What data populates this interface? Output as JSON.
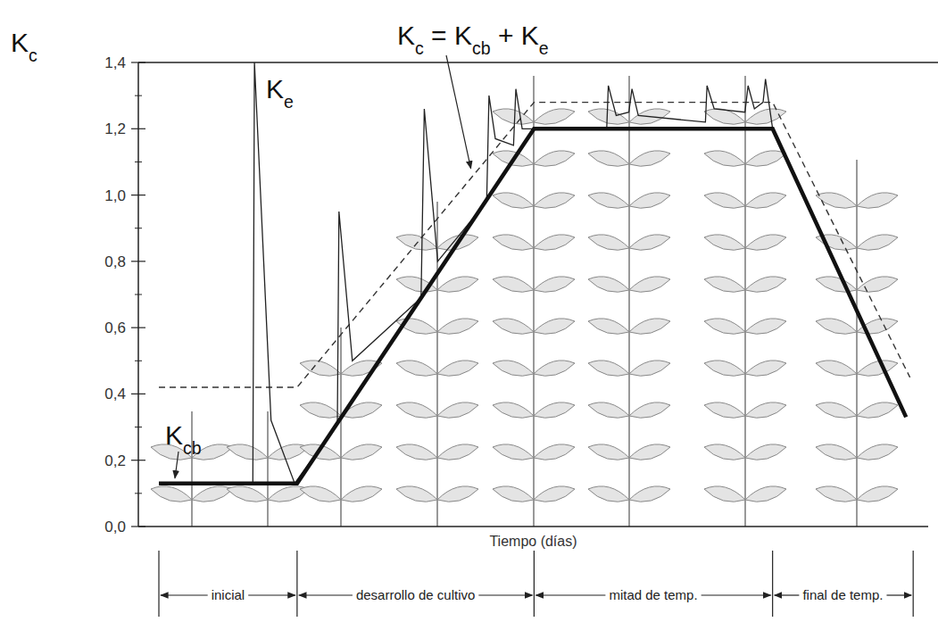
{
  "chart_data": {
    "type": "line",
    "y_label": "Kc",
    "x_label": "Tiempo (días)",
    "xlim": [
      0,
      100
    ],
    "ylim": [
      0,
      1.4
    ],
    "yticks": [
      {
        "value": 0,
        "label": "0,0"
      },
      {
        "value": 0.2,
        "label": "0,2"
      },
      {
        "value": 0.4,
        "label": "0,4"
      },
      {
        "value": 0.6,
        "label": "0,6"
      },
      {
        "value": 0.8,
        "label": "0,8"
      },
      {
        "value": 1.0,
        "label": "1,0"
      },
      {
        "value": 1.2,
        "label": "1,2"
      },
      {
        "value": 1.4,
        "label": "1,4"
      }
    ],
    "tick_labels": "y",
    "grid": false,
    "series": [
      {
        "name": "Kcb",
        "color": "#111111",
        "line_style": "bold",
        "x": [
          2.6,
          20.1,
          50.1,
          80.3,
          97.2
        ],
        "values": [
          0.13,
          0.13,
          1.2,
          1.2,
          0.33
        ]
      },
      {
        "name": "Ke",
        "color": "#222222",
        "line_style": "solid",
        "x": [
          2.6,
          14.5,
          14.7,
          16.8,
          19.8,
          25.2,
          25.4,
          27.1,
          35.8,
          36.2,
          37.9,
          44.1,
          44.4,
          45.2,
          47.5,
          47.8,
          48.6,
          50.1,
          59.3,
          59.5,
          60.5,
          62.1,
          62.5,
          63.3,
          71.8,
          72.0,
          72.9,
          76.8,
          77.2,
          78.0,
          79.1,
          79.4,
          80.3
        ],
        "values": [
          0.13,
          0.13,
          1.4,
          0.32,
          0.13,
          0.31,
          0.95,
          0.5,
          0.69,
          1.26,
          0.8,
          0.98,
          1.3,
          1.17,
          1.15,
          1.32,
          1.2,
          1.2,
          1.2,
          1.33,
          1.24,
          1.25,
          1.32,
          1.24,
          1.22,
          1.33,
          1.26,
          1.25,
          1.33,
          1.26,
          1.28,
          1.35,
          1.2
        ]
      },
      {
        "name": "Kc = Kcb + Ke",
        "color": "#333333",
        "line_style": "dashed",
        "x": [
          2.6,
          20.1,
          50.1,
          80.3,
          97.7
        ],
        "values": [
          0.42,
          0.42,
          1.28,
          1.28,
          0.45
        ]
      }
    ],
    "stages": [
      {
        "label": "inicial",
        "start": 2.6,
        "end": 20.1
      },
      {
        "label": "desarrollo de cultivo",
        "start": 20.1,
        "end": 50.1
      },
      {
        "label": "mitad de temp.",
        "start": 50.1,
        "end": 80.3
      },
      {
        "label": "final de temp.",
        "start": 80.3,
        "end": 98.1
      }
    ]
  }
}
